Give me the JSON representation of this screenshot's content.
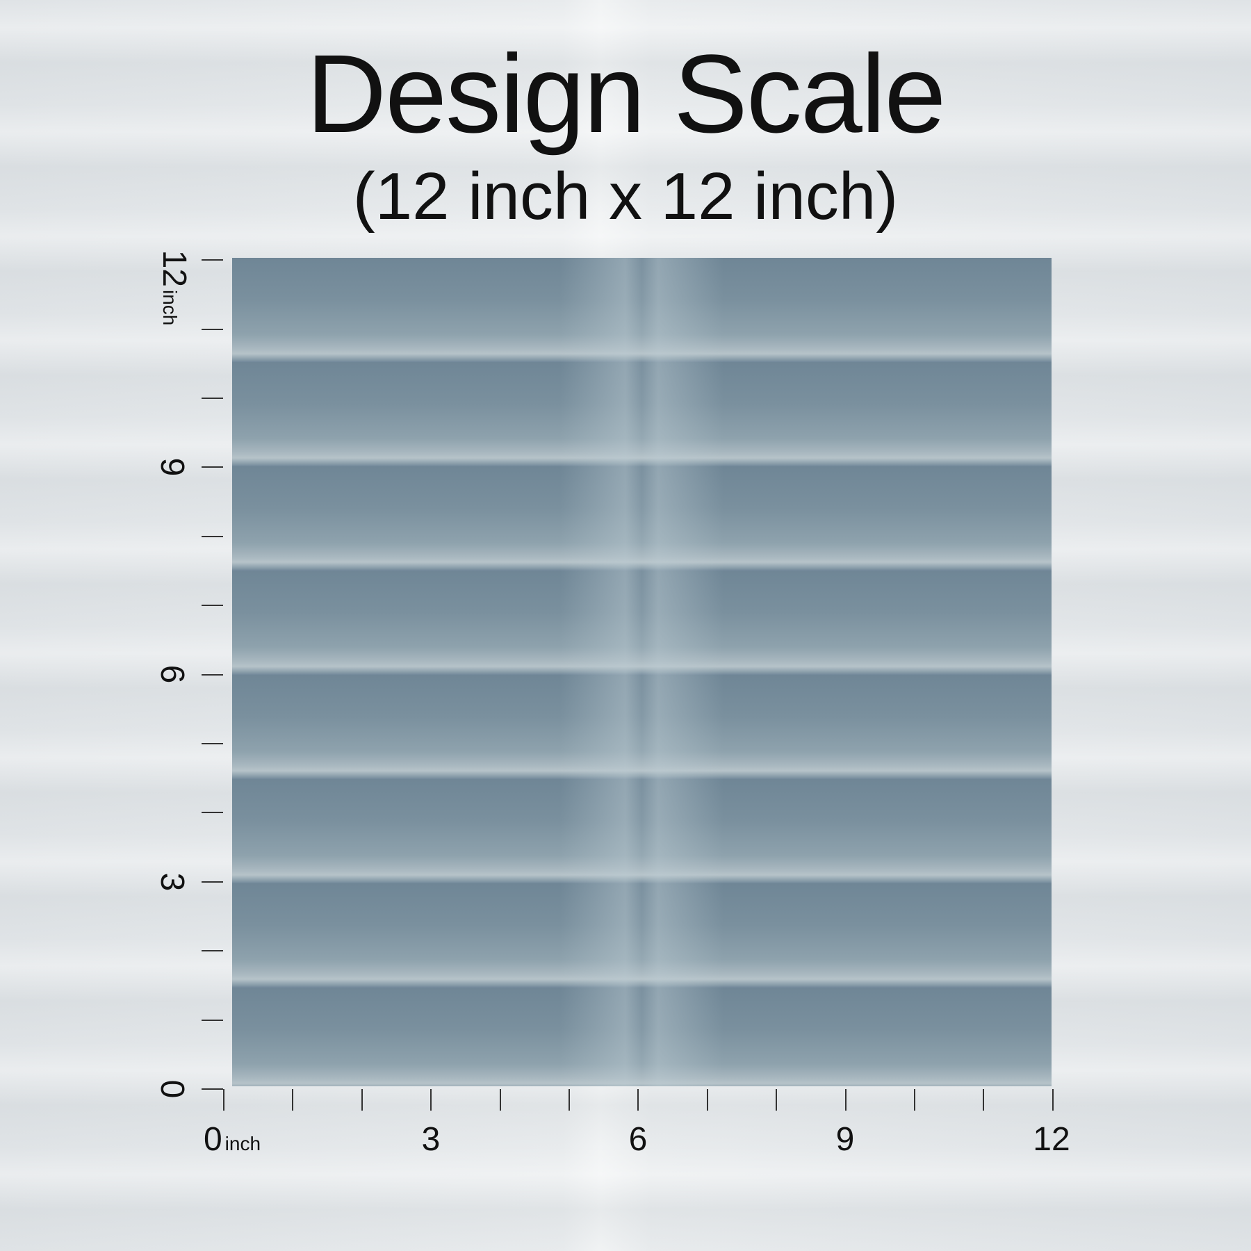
{
  "title": "Design Scale",
  "subtitle": "(12 inch x 12 inch)",
  "x_axis": {
    "labels": [
      "0",
      "3",
      "6",
      "9",
      "12"
    ],
    "unit": "inch"
  },
  "y_axis": {
    "labels": [
      "0",
      "3",
      "6",
      "9",
      "12"
    ],
    "unit": "inch"
  },
  "colors": {
    "pattern": "#7d93a0",
    "background": "#e4e8ea",
    "text": "#111111"
  }
}
